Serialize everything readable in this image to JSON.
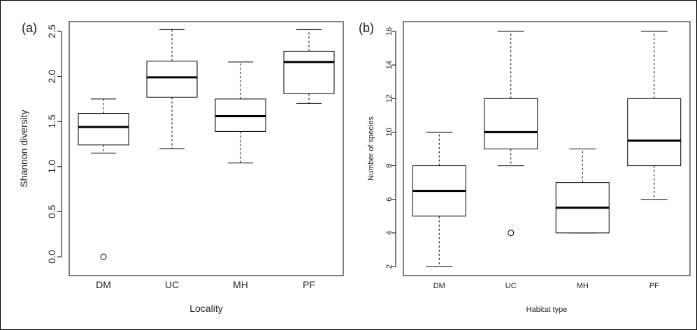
{
  "chart_data": [
    {
      "type": "box",
      "panel_label": "(a)",
      "xlabel": "Locality",
      "ylabel": "Shannon diversity",
      "categories": [
        "DM",
        "UC",
        "MH",
        "PF"
      ],
      "ylim": [
        0,
        2.5
      ],
      "yticks": [
        "0.0",
        "0.5",
        "1.0",
        "1.5",
        "2.0",
        "2.5"
      ],
      "boxes": [
        {
          "category": "DM",
          "whisker_low": 1.15,
          "q1": 1.24,
          "median": 1.44,
          "q3": 1.59,
          "whisker_high": 1.75,
          "outliers": [
            0.0
          ]
        },
        {
          "category": "UC",
          "whisker_low": 1.2,
          "q1": 1.77,
          "median": 1.99,
          "q3": 2.17,
          "whisker_high": 2.52,
          "outliers": []
        },
        {
          "category": "MH",
          "whisker_low": 1.04,
          "q1": 1.39,
          "median": 1.56,
          "q3": 1.75,
          "whisker_high": 2.16,
          "outliers": []
        },
        {
          "category": "PF",
          "whisker_low": 1.7,
          "q1": 1.81,
          "median": 2.16,
          "q3": 2.28,
          "whisker_high": 2.52,
          "outliers": []
        }
      ]
    },
    {
      "type": "box",
      "panel_label": "(b)",
      "xlabel": "Habitat type",
      "ylabel": "Number of species",
      "categories": [
        "DM",
        "UC",
        "MH",
        "PF"
      ],
      "ylim": [
        2,
        16
      ],
      "yticks": [
        "2",
        "4",
        "6",
        "8",
        "10",
        "12",
        "14",
        "16"
      ],
      "boxes": [
        {
          "category": "DM",
          "whisker_low": 2,
          "q1": 5,
          "median": 6.5,
          "q3": 8,
          "whisker_high": 10,
          "outliers": []
        },
        {
          "category": "UC",
          "whisker_low": 8,
          "q1": 9,
          "median": 10,
          "q3": 12,
          "whisker_high": 16,
          "outliers": [
            4
          ]
        },
        {
          "category": "MH",
          "whisker_low": 4,
          "q1": 4,
          "median": 5.5,
          "q3": 7,
          "whisker_high": 9,
          "outliers": []
        },
        {
          "category": "PF",
          "whisker_low": 6,
          "q1": 8,
          "median": 9.5,
          "q3": 12,
          "whisker_high": 16,
          "outliers": []
        }
      ]
    }
  ]
}
